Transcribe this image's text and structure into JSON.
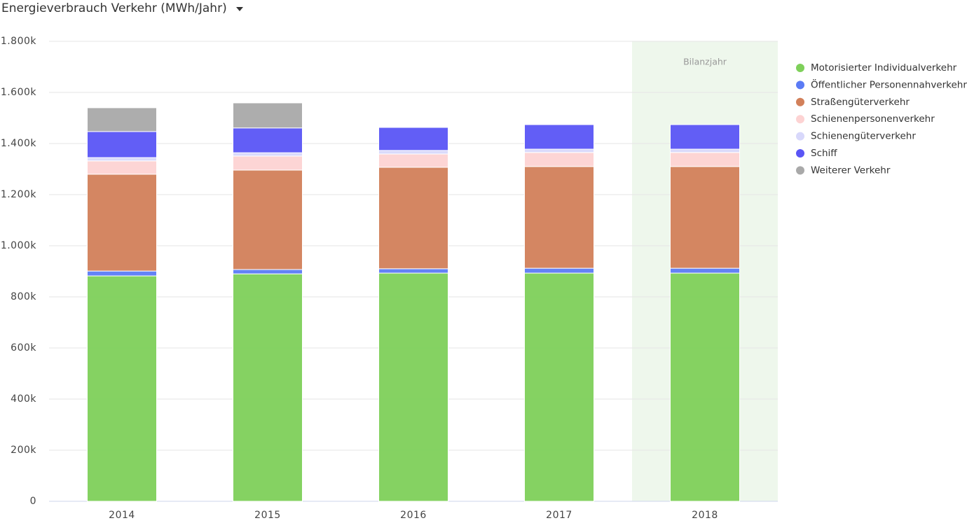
{
  "chart_data": {
    "type": "stacked_bar",
    "title": "Energieverbrauch Verkehr (MWh/Jahr)",
    "categories": [
      "2014",
      "2015",
      "2016",
      "2017",
      "2018"
    ],
    "series": [
      {
        "name": "Motorisierter Individualverkehr",
        "color": "#7ed05a",
        "values": [
          882000,
          890000,
          893000,
          893000,
          893000
        ]
      },
      {
        "name": "Öffentlicher Personennahverkehr",
        "color": "#5b7bf5",
        "values": [
          19000,
          17000,
          17000,
          19000,
          19000
        ]
      },
      {
        "name": "Straßengüterverkehr",
        "color": "#d2805a",
        "values": [
          379000,
          389000,
          397000,
          398000,
          398000
        ]
      },
      {
        "name": "Schienenpersonenverkehr",
        "color": "#fdd3d3",
        "values": [
          52000,
          55000,
          52000,
          55000,
          55000
        ]
      },
      {
        "name": "Schienengüterverkehr",
        "color": "#d8d8fb",
        "values": [
          13000,
          13000,
          14000,
          13000,
          13000
        ]
      },
      {
        "name": "Schiff",
        "color": "#5a55f5",
        "values": [
          102000,
          97000,
          90000,
          96000,
          96000
        ]
      },
      {
        "name": "Weiterer Verkehr",
        "color": "#a9a9a9",
        "values": [
          93000,
          98000,
          0,
          0,
          0
        ]
      }
    ],
    "ylim": [
      0,
      1800000
    ],
    "yticks": [
      0,
      {
        "value": 200000,
        "label": "200k"
      },
      {
        "value": 400000,
        "label": "400k"
      },
      {
        "value": 600000,
        "label": "600k"
      },
      {
        "value": 800000,
        "label": "800k"
      },
      {
        "value": 1000000,
        "label": "1.000k"
      },
      {
        "value": 1200000,
        "label": "1.200k"
      },
      {
        "value": 1400000,
        "label": "1.400k"
      },
      {
        "value": 1600000,
        "label": "1.600k"
      },
      {
        "value": 1800000,
        "label": "1.800k"
      }
    ],
    "grid": true,
    "legend": "right",
    "highlight": {
      "category": "2018",
      "label": "Bilanzjahr",
      "color": "#eef7ec"
    }
  }
}
